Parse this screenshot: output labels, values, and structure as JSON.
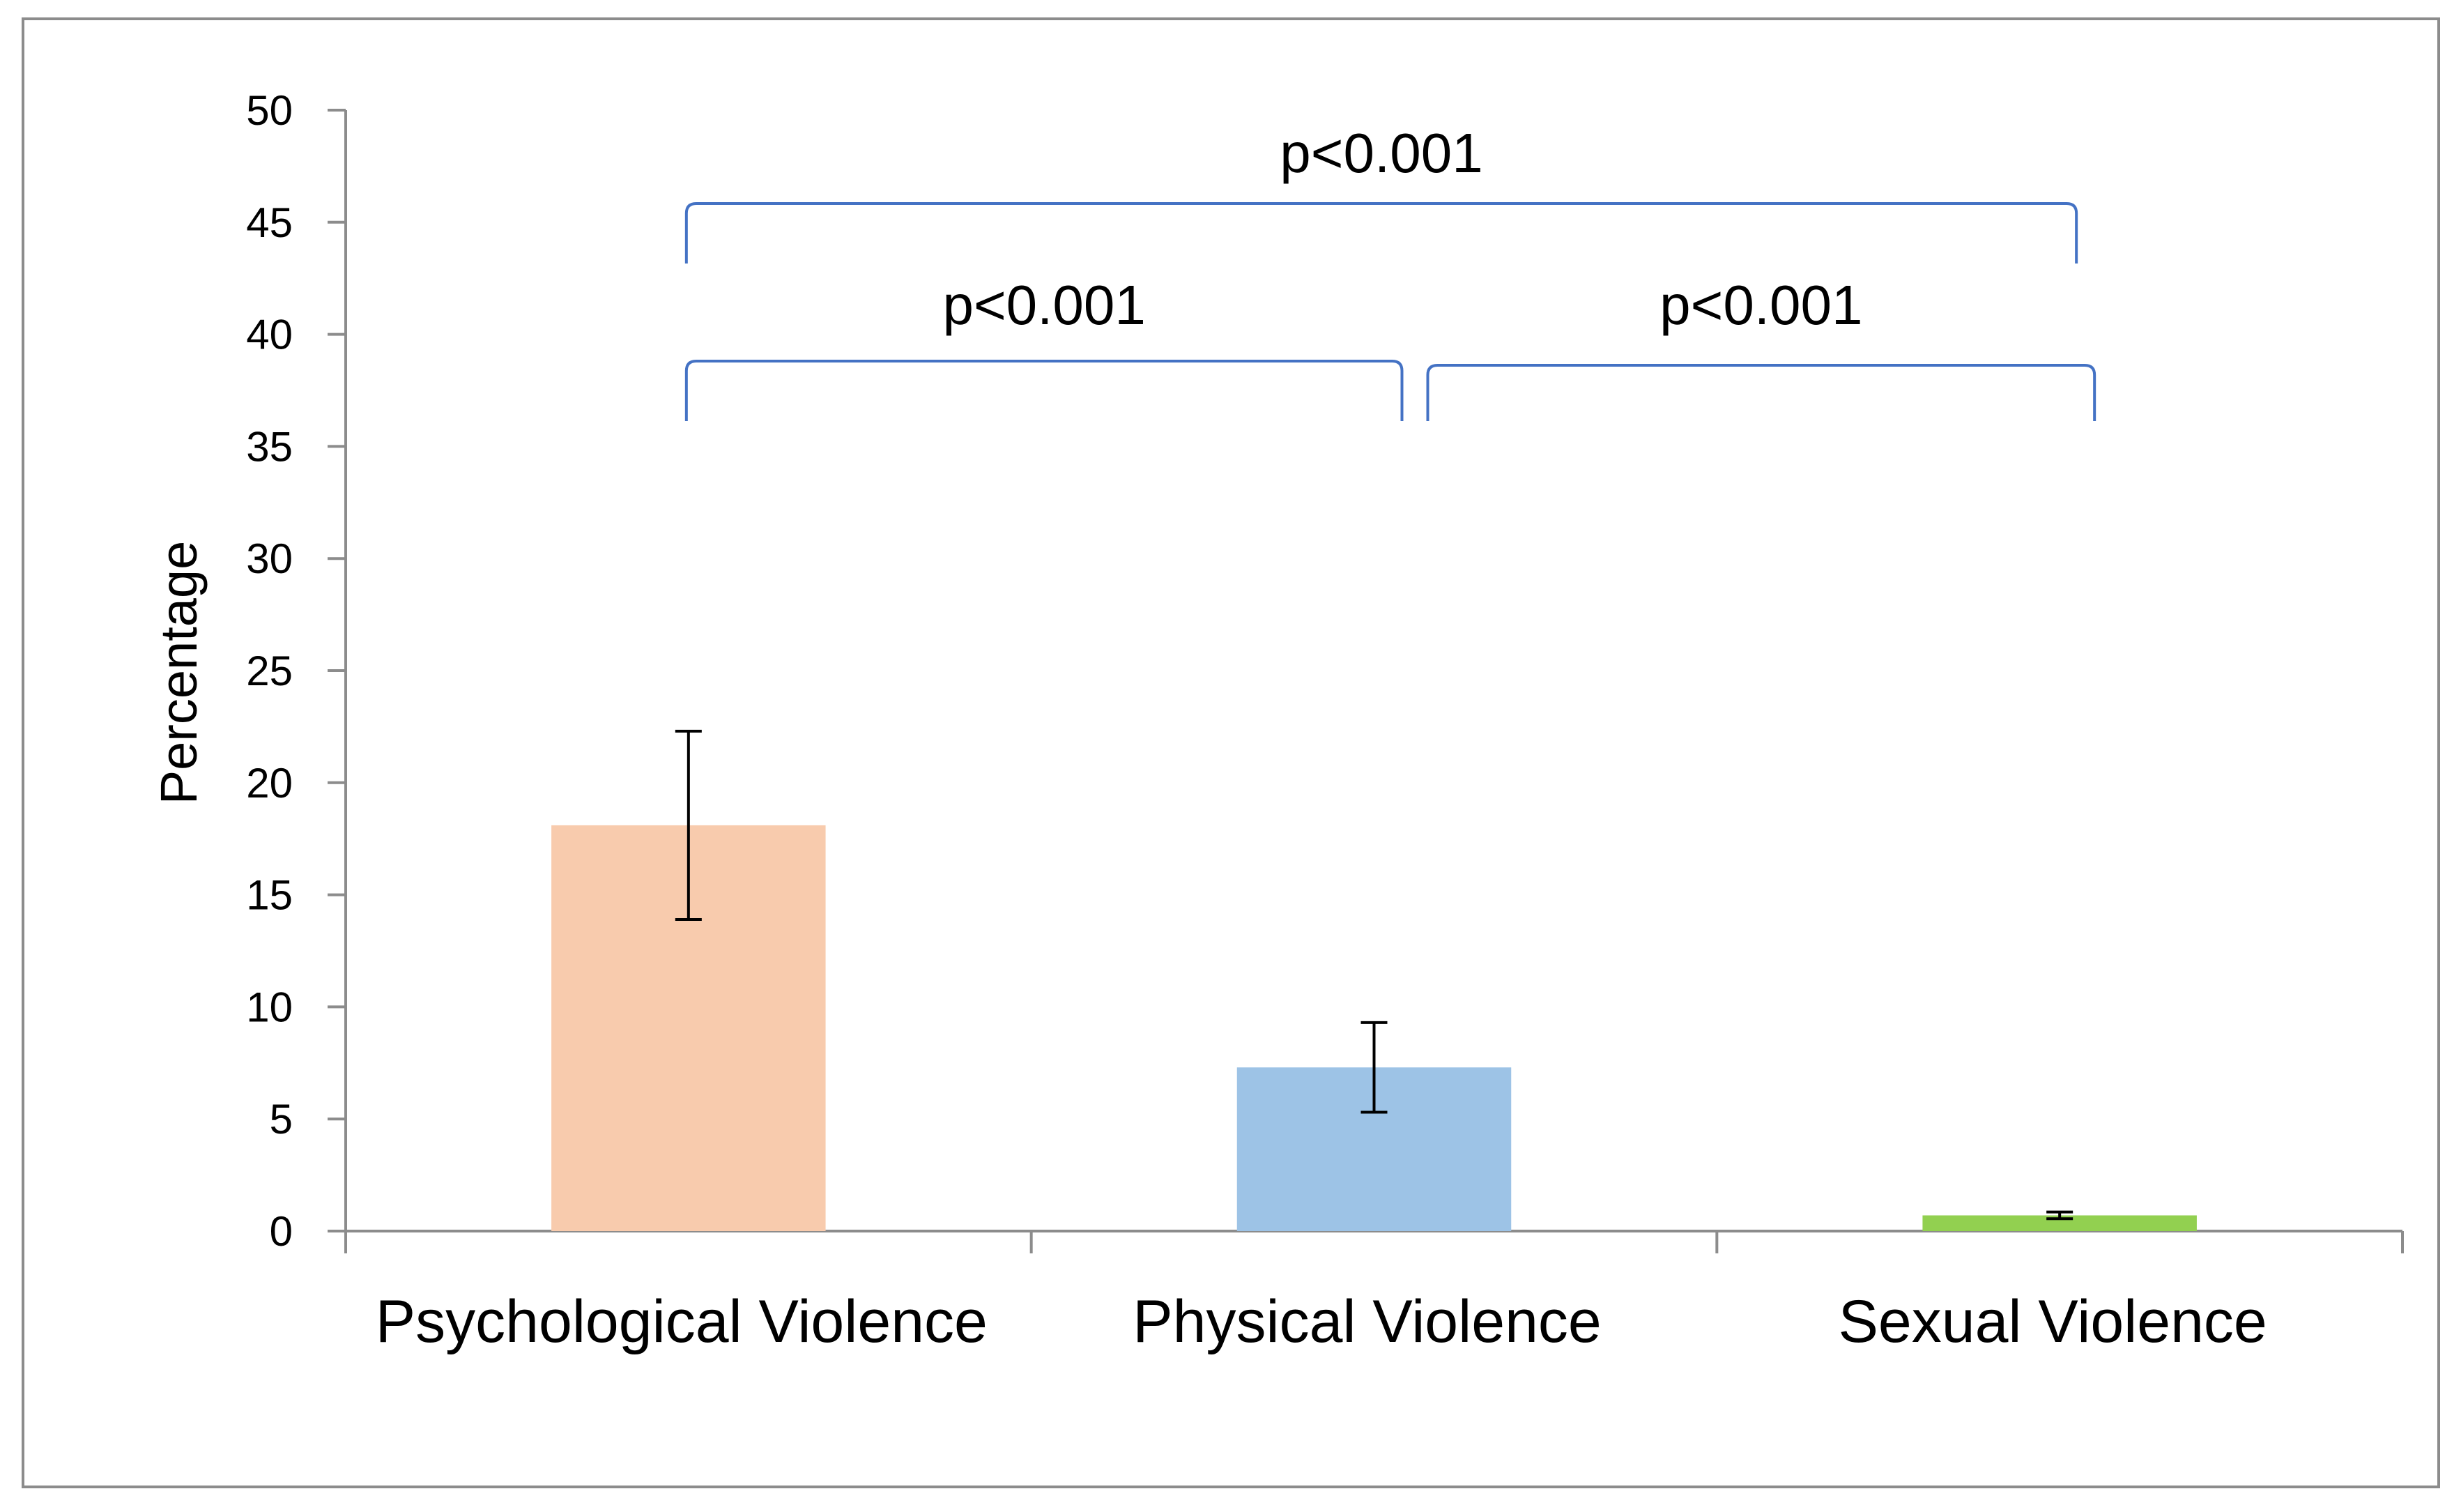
{
  "chart_data": {
    "type": "bar",
    "title": "",
    "xlabel": "",
    "ylabel": "Percentage",
    "ylim": [
      0,
      50
    ],
    "yticks": [
      "0",
      "5",
      "10",
      "15",
      "20",
      "25",
      "30",
      "35",
      "40",
      "45",
      "50"
    ],
    "grid": false,
    "legend": "none",
    "categories": [
      "Psychological Violence",
      "Physical Violence",
      "Sexual Violence"
    ],
    "values": [
      18.1,
      7.3,
      0.7
    ],
    "error_bars": [
      {
        "low": 13.9,
        "high": 22.3
      },
      {
        "low": 5.3,
        "high": 9.3
      },
      {
        "low": 0.55,
        "high": 0.85
      }
    ],
    "colors": [
      "#f8cbad",
      "#9dc3e6",
      "#92d050"
    ],
    "significance": [
      {
        "label": "p<0.001",
        "from": 0,
        "to": 1
      },
      {
        "label": "p<0.001",
        "from": 1,
        "to": 2
      },
      {
        "label": "p<0.001",
        "from": 0,
        "to": 2
      }
    ],
    "bracket_color": "#4472c4",
    "axis_color": "#8c8c8c"
  }
}
